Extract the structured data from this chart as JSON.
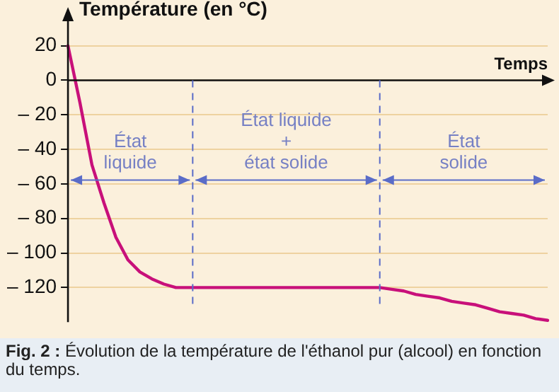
{
  "chart_data": {
    "type": "line",
    "ylabel": "Température (en °C)",
    "xlabel": "Temps",
    "categories": [
      null,
      null,
      null,
      null,
      null,
      null,
      null,
      null,
      null,
      null,
      null,
      null,
      null,
      null,
      null,
      null,
      null,
      null,
      null,
      null,
      null,
      null,
      null,
      null,
      null,
      null,
      null,
      null,
      null,
      null,
      null,
      null,
      null,
      null,
      null,
      null,
      null,
      null,
      null,
      null,
      null
    ],
    "series": [
      {
        "color": "#c8107a",
        "values": [
          20,
          -13,
          -49,
          -71,
          -91,
          -104,
          -111,
          -115,
          -118,
          -120,
          -120,
          -120,
          -120,
          -120,
          -120,
          -120,
          -120,
          -120,
          -120,
          -120,
          -120,
          -120,
          -120,
          -120,
          -120,
          -120,
          -120,
          -121,
          -122,
          -124,
          -125,
          -126,
          -128,
          -129,
          -130,
          -132,
          -134,
          -135,
          -136,
          -138,
          -139
        ]
      }
    ],
    "ylim": [
      -140,
      35
    ],
    "yticks": [
      20,
      0,
      {
        "value": -20,
        "label": "– 20"
      },
      {
        "value": -40,
        "label": "– 40"
      },
      {
        "value": -60,
        "label": "– 60"
      },
      {
        "value": -80,
        "label": "– 80"
      },
      {
        "value": -100,
        "label": "– 100"
      },
      {
        "value": -120,
        "label": "– 120"
      }
    ],
    "tick_labels": "y",
    "grid": "y",
    "marker": "none",
    "line_style": "solid",
    "legend": false,
    "annotations": [
      "État\nliquide",
      "État liquide\n+\nétat solide",
      "État\nsolide",
      "Fig. 2 : Évolution de la température de l'éthanol pur (alcool) en fonction du temps."
    ]
  }
}
